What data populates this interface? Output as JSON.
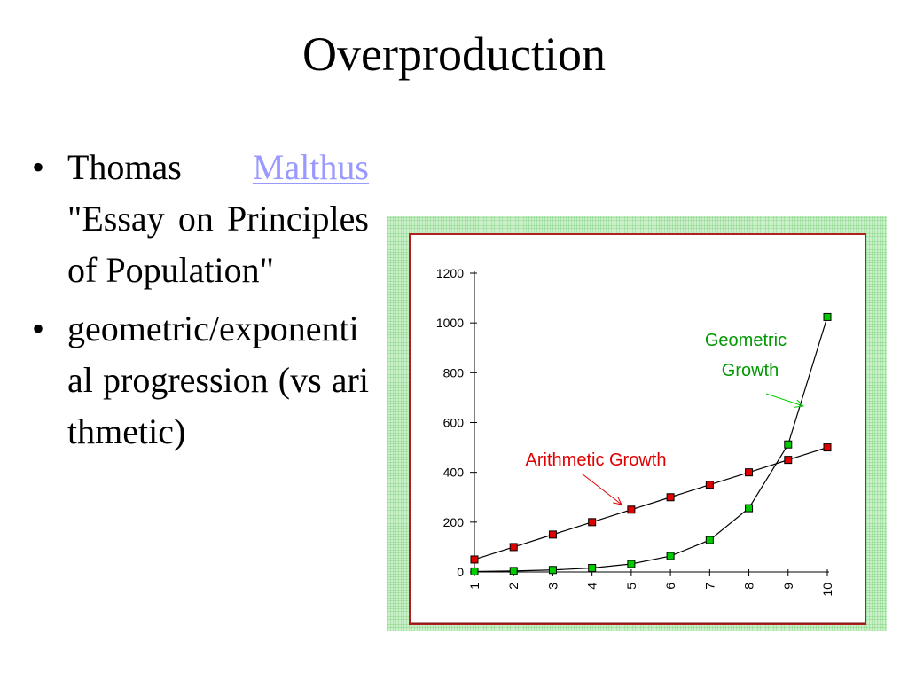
{
  "slide": {
    "title": "Overproduction",
    "bullets": [
      {
        "before": "Thomas ",
        "link": "Malthus ",
        "after": "\"Essay on Principles of Population\""
      },
      {
        "text": "geometric/exponential progression (vs arithmetic)"
      }
    ],
    "link_color": "#9999ff"
  },
  "chart_data": {
    "type": "line",
    "x": [
      1,
      2,
      3,
      4,
      5,
      6,
      7,
      8,
      9,
      10
    ],
    "ylim": [
      0,
      1200
    ],
    "yticks": [
      0,
      200,
      400,
      600,
      800,
      1000,
      1200
    ],
    "grid": false,
    "series": [
      {
        "name": "Arithmetic Growth",
        "values": [
          50,
          100,
          150,
          200,
          250,
          300,
          350,
          400,
          450,
          500
        ],
        "color": "#e00000",
        "label_color": "#e00000"
      },
      {
        "name": "Geometric Growth",
        "values": [
          2,
          4,
          8,
          16,
          32,
          64,
          128,
          256,
          512,
          1024
        ],
        "color": "#00cc00",
        "label_color": "#009900"
      }
    ]
  }
}
